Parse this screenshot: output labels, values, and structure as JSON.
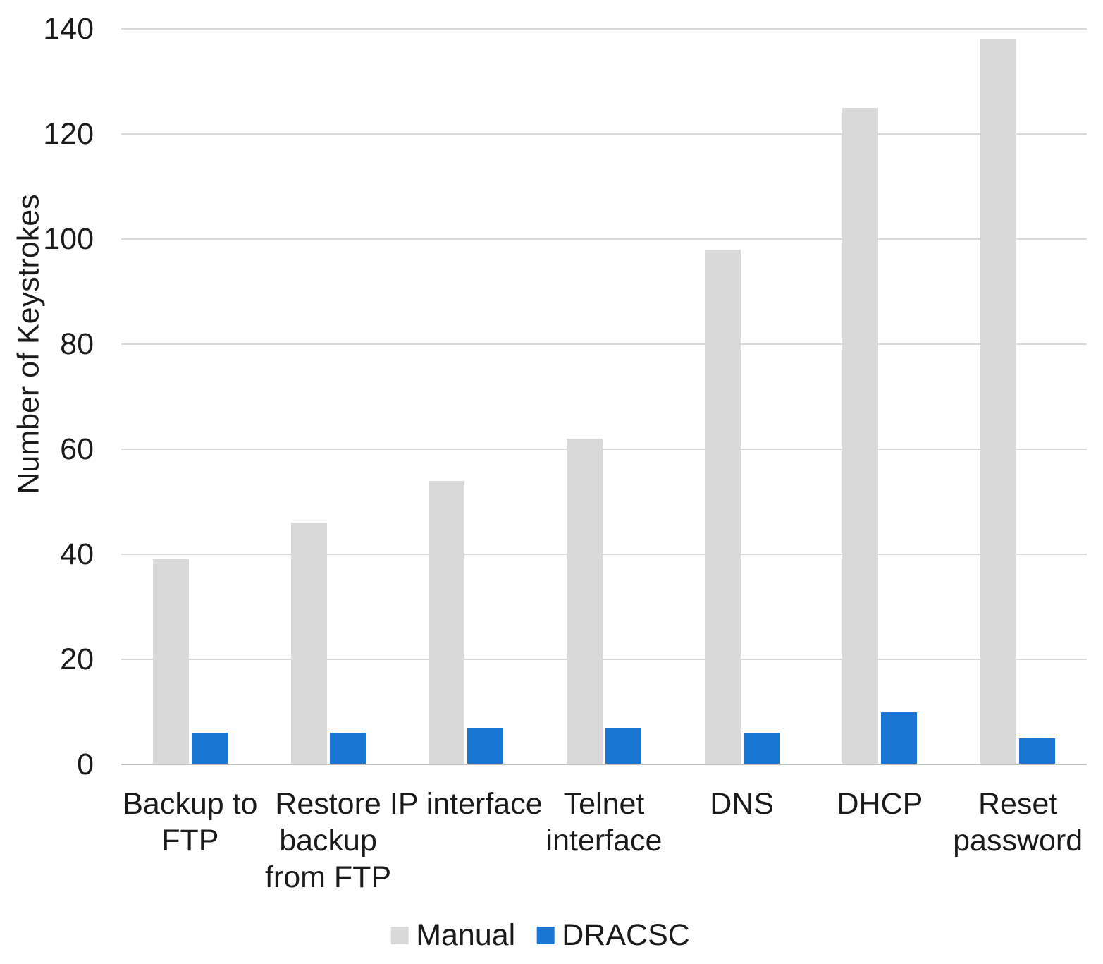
{
  "chart_data": {
    "type": "bar",
    "title": "",
    "xlabel": "",
    "ylabel": "Number of Keystrokes",
    "ylim": [
      0,
      140
    ],
    "yticks": [
      0,
      20,
      40,
      60,
      80,
      100,
      120,
      140
    ],
    "grid": true,
    "legend_position": "bottom-center",
    "categories": [
      "Backup to FTP",
      "Restore backup from FTP",
      "IP interface",
      "Telnet interface",
      "DNS",
      "DHCP",
      "Reset password"
    ],
    "category_display_lines": [
      [
        "Backup to",
        "FTP"
      ],
      [
        "Restore",
        "backup",
        "from FTP"
      ],
      [
        "IP interface"
      ],
      [
        "Telnet",
        "interface"
      ],
      [
        "DNS"
      ],
      [
        "DHCP"
      ],
      [
        "Reset",
        "password"
      ]
    ],
    "series": [
      {
        "name": "Manual",
        "color": "#D9D9D9",
        "values": [
          39,
          46,
          54,
          62,
          98,
          125,
          138
        ]
      },
      {
        "name": "DRACSC",
        "color": "#1976D2",
        "values": [
          6,
          6,
          7,
          7,
          6,
          10,
          5
        ]
      }
    ]
  },
  "style": {
    "background": "#FFFFFF",
    "text_color": "#1A1A1A",
    "gridline_color": "#D9D9D9",
    "axis_line_color": "#BFBFBF"
  }
}
